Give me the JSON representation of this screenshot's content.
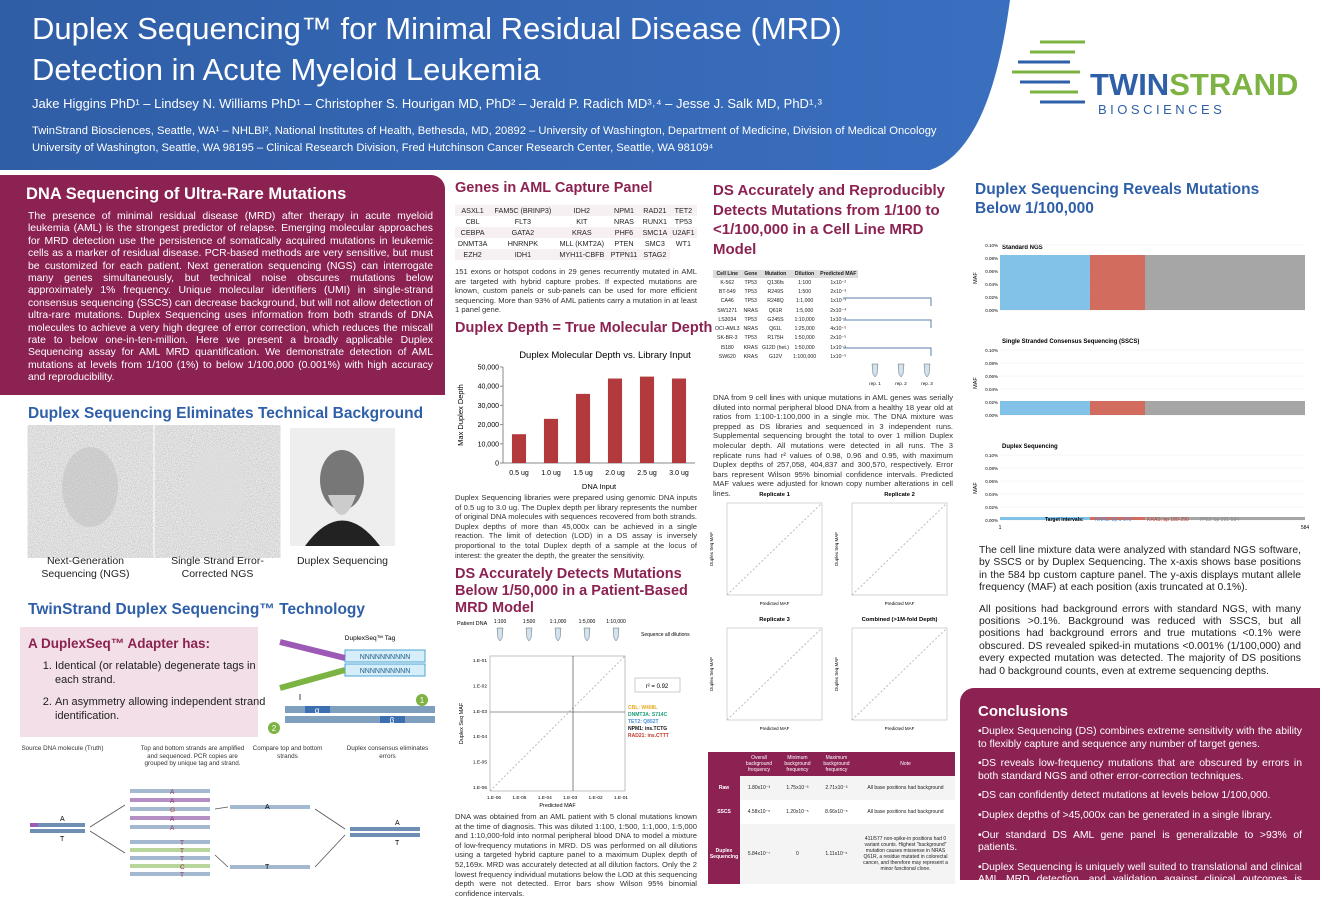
{
  "header": {
    "title_line1": "Duplex Sequencing™ for Minimal Residual Disease (MRD)",
    "title_line2": "Detection in Acute Myeloid Leukemia",
    "authors": "Jake Higgins PhD¹ – Lindsey N. Williams PhD¹ – Christopher S. Hourigan MD, PhD² – Jerald P. Radich MD³˒⁴ – Jesse J. Salk MD, PhD¹˒³",
    "affiliations_line1": "TwinStrand Biosciences, Seattle, WA¹ – NHLBI², National Institutes of Health, Bethesda, MD, 20892 – University of Washington, Department of Medicine, Division of Medical Oncology",
    "affiliations_line2": "University of Washington, Seattle, WA 98195 – Clinical Research Division, Fred Hutchinson Cancer Research Center, Seattle, WA 98109⁴"
  },
  "logo": {
    "name_part1": "TWIN",
    "name_part2": "STRAND",
    "subtitle": "BIOSCIENCES"
  },
  "section_rare": {
    "title": "DNA Sequencing of Ultra-Rare Mutations",
    "body": "The presence of minimal residual disease (MRD) after therapy in acute myeloid leukemia (AML) is the strongest predictor of relapse. Emerging molecular approaches for MRD detection use the persistence of somatically acquired mutations in leukemic cells as a marker of residual disease. PCR-based methods are very sensitive, but must be customized for each patient. Next generation sequencing (NGS) can interrogate many genes simultaneously, but technical noise obscures mutations below approximately 1% frequency. Unique molecular identifiers (UMI) in single-strand consensus sequencing (SSCS) can decrease background, but will not allow detection of ultra-rare mutations. Duplex Sequencing uses information from both strands of DNA molecules to achieve a very high degree of error correction, which reduces the miscall rate to below one-in-ten-million. Here we present a broadly applicable Duplex Sequencing assay for AML MRD quantification. We demonstrate detection of AML mutations at levels from 1/100 (1%) to below 1/100,000 (0.001%) with high accuracy and reproducibility."
  },
  "section_background": {
    "title": "Duplex Sequencing Eliminates Technical Background",
    "captions": [
      "Next-Generation Sequencing (NGS)",
      "Single Strand Error-Corrected NGS",
      "Duplex Sequencing"
    ]
  },
  "section_technology": {
    "title": "TwinStrand Duplex Sequencing™ Technology",
    "adapter_heading": "A DuplexSeq™ Adapter has:",
    "adapter_points": [
      "Identical (or relatable) degenerate tags in each strand.",
      "An asymmetry allowing independent strand identification."
    ],
    "adapter_diagram": {
      "tag_label": "DuplexSeq™ Tag",
      "tag_seq": "NNNNNNNNNN",
      "alpha": "α",
      "beta": "β",
      "strand_1": "1",
      "strand_2": "2"
    },
    "workflow_steps": [
      "Source DNA molecule (Truth)",
      "Top and bottom strands are amplified and sequenced. PCR copies are grouped by unique tag and strand.",
      "Compare top and bottom strands",
      "Duplex consensus eliminates errors"
    ],
    "bases": {
      "top": "A",
      "bottom": "T",
      "error_1": "G",
      "error_2": "C"
    }
  },
  "section_genes": {
    "title": "Genes in AML Capture Panel",
    "table": [
      [
        "ASXL1",
        "FAM5C (BRINP3)",
        "IDH2",
        "NPM1",
        "RAD21",
        "TET2"
      ],
      [
        "CBL",
        "FLT3",
        "KIT",
        "NRAS",
        "RUNX1",
        "TP53"
      ],
      [
        "CEBPA",
        "GATA2",
        "KRAS",
        "PHF6",
        "SMC1A",
        "U2AF1"
      ],
      [
        "DNMT3A",
        "HNRNPK",
        "MLL (KMT2A)",
        "PTEN",
        "SMC3",
        "WT1"
      ],
      [
        "EZH2",
        "IDH1",
        "MYH11-CBFB",
        "PTPN11",
        "STAG2"
      ]
    ],
    "note": "151 exons or hotspot codons in 29 genes recurrently mutated in AML are targeted with hybrid capture probes. If expected mutations are known, custom panels or sub-panels can be used for more efficient sequencing. More than 93% of AML patients carry a mutation in at least 1 panel gene."
  },
  "section_depth": {
    "title": "Duplex Depth = True Molecular Depth",
    "note": "Duplex Sequencing libraries were prepared using genomic DNA inputs of 0.5 ug to 3.0 ug. The Duplex depth per library represents the number of original DNA molecules with sequences recovered from both strands. Duplex depths of more than 45,000x can be achieved in a single reaction. The limit of detection (LOD) in a DS assay is inversely proportional to the total Duplex depth of a sample at the locus of interest: the greater the depth, the greater the sensitivity."
  },
  "chart_data": {
    "type": "bar",
    "title": "Duplex Molecular Depth vs. Library Input",
    "x_label": "DNA Input",
    "y_label": "Max Duplex Depth",
    "categories": [
      "0.5 ug",
      "1.0 ug",
      "1.5 ug",
      "2.0 ug",
      "2.5 ug",
      "3.0 ug"
    ],
    "values": [
      15000,
      23000,
      36000,
      44000,
      45000,
      44000
    ],
    "color": "#b23a3c",
    "ylim": [
      0,
      50000
    ],
    "yticks": [
      0,
      {
        "value": 10000,
        "label": "10,000"
      },
      {
        "value": 20000,
        "label": "20,000"
      },
      {
        "value": 30000,
        "label": "30,000"
      },
      {
        "value": 40000,
        "label": "40,000"
      },
      {
        "value": 50000,
        "label": "50,000"
      }
    ],
    "grid": false
  },
  "section_patient": {
    "title": "DS Accurately Detects Mutations Below 1/50,000 in a Patient-Based MRD Model",
    "figure": {
      "source": "Patient DNA",
      "dilutions": [
        "1:100",
        "1:500",
        "1:1,000",
        "1:5,000",
        "1:10,000"
      ],
      "sequence": "Sequence all dilutions",
      "axis_ticks": [
        "1.E-01",
        "1.E-02",
        "1.E-03",
        "1.E-04",
        "1.E-05",
        "1.E-06"
      ],
      "x_label": "Predicted MAF",
      "y_label": "Duplex Seq MAF",
      "r2": "r² = 0.92",
      "legend": [
        "CBL: W408L",
        "DNMT3A: S714C",
        "TET2: Q852T",
        "NPM1: ins.TCTG",
        "RAD21: ins.CTTT"
      ]
    },
    "note": "DNA was obtained from an AML patient with 5 clonal mutations known at the time of diagnosis. This was diluted 1:100, 1:500, 1:1,000, 1:5,000 and 1:10,000-fold into normal peripheral blood DNA to model a mixture of low-frequency mutations in MRD. DS was performed on all dilutions using a targeted hybrid capture panel to a maximum Duplex depth of 52,169x. MRD was accurately detected at all dilution factors. Only the 2 lowest frequency individual mutations below the LOD at this sequencing depth were not detected. Error bars show Wilson 95% binomial confidence intervals."
  },
  "section_cell_line": {
    "title": "DS Accurately and Reproducibly Detects Mutations from 1/100 to <1/100,000 in a Cell Line MRD Model",
    "table": {
      "header": [
        "Cell Line",
        "Gene",
        "Mutation",
        "Dilution",
        "Predicted MAF"
      ],
      "rows": [
        [
          "K-562",
          "TP53",
          "Q136fs",
          "1:100",
          "1x10⁻²"
        ],
        [
          "BT-549",
          "TP53",
          "R249S",
          "1:500",
          "2x10⁻³"
        ],
        [
          "CA46",
          "TP53",
          "R248Q",
          "1:1,000",
          "1x10⁻³"
        ],
        [
          "SW1271",
          "NRAS",
          "Q61R",
          "1:5,000",
          "2x10⁻⁴"
        ],
        [
          "LS3034",
          "TP53",
          "G245S",
          "1:10,000",
          "1x10⁻⁴"
        ],
        [
          "OCI-AML3",
          "NRAS",
          "Q61L",
          "1:25,000",
          "4x10⁻⁵"
        ],
        [
          "SK-BR-3",
          "TP53",
          "R175H",
          "1:50,000",
          "2x10⁻⁵"
        ],
        [
          "I5180",
          "KRAS",
          "G12D (het.)",
          "1:50,000",
          "1x10⁻⁵"
        ],
        [
          "SW620",
          "KRAS",
          "G12V",
          "1:100,000",
          "1x10⁻⁵"
        ]
      ]
    },
    "replicate_steps": [
      "rep. 1",
      "rep. 2",
      "rep. 3"
    ],
    "note": "DNA from 9 cell lines with unique mutations in AML genes was serially diluted into normal peripheral blood DNA from a healthy 18 year old at ratios from 1:100-1:100,000 in a single mix. The DNA mixture was prepped as DS libraries and sequenced in 3 independent runs. Supplemental sequencing brought the total to over 1 million Duplex molecular depth. All mutations were detected in all runs. The 3 replicate runs had r² values of 0.98, 0.96 and 0.95, with maximum Duplex depths of 257,058, 404,837 and 300,570, respectively. Error bars represent Wilson 95% binomial confidence intervals. Predicted MAF values were adjusted for known copy number alterations in cell lines.",
    "replicates": [
      "Replicate 1",
      "Replicate 2",
      "Replicate 3",
      "Combined (>1M-fold Depth)"
    ],
    "replicate_x_label": "Predicted MAF",
    "replicate_y_label": "Duplex Seq MAF",
    "background_table": {
      "header": [
        "Overall background frequency",
        "Minimum background frequency",
        "Maximum background frequency",
        "Note"
      ],
      "rows": [
        {
          "label": "Raw",
          "cells": [
            "1.80x10⁻³",
            "1.75x10⁻³",
            "2.71x10⁻³",
            "All base positions had background"
          ]
        },
        {
          "label": "SSCS",
          "cells": [
            "4.58x10⁻⁵",
            "1.20x10⁻⁵",
            "8.66x10⁻⁵",
            "All base positions had background"
          ]
        },
        {
          "label": "Duplex Sequencing",
          "cells": [
            "5.84x10⁻⁷",
            "0",
            "1.11x10⁻⁵",
            "411/577 non-spike-in positions had 0 variant counts. Highest \"background\" mutation causes missense in NRAS Q61R, a residue mutated in colorectal cancer, and therefore may represent a minor functional clone."
          ]
        }
      ]
    }
  },
  "section_reveals": {
    "title": "Duplex Sequencing Reveals Mutations Below 1/100,000",
    "panels": [
      "Standard NGS",
      "Single Stranded Consensus Sequencing (SSCS)",
      "Duplex Sequencing"
    ],
    "y_label": "MAF",
    "y_ticks": [
      "0.10%",
      "0.08%",
      "0.06%",
      "0.04%",
      "0.02%",
      "0.00%"
    ],
    "x_start": "1",
    "x_end": "584",
    "target_label": "Target intervals:",
    "targets": [
      "NRAS: bp 1-179",
      "KRAS: bp 180-290",
      "TP53: bp 291-584"
    ],
    "paragraphs": [
      "The cell line mixture data were analyzed with standard NGS software, by SSCS or by Duplex Sequencing. The x-axis shows base positions in the 584 bp custom capture panel. The y-axis displays mutant allele frequency (MAF) at each position (axis truncated at 0.1%).",
      "All positions had background errors with standard NGS, with many positions >0.1%. Background was reduced with SSCS, but all positions had background errors and true mutations <0.1% were obscured. DS revealed spiked-in mutations <0.001% (1/100,000) and every expected mutation was detected. The majority of DS positions had 0 background counts, even at extreme sequencing depths."
    ]
  },
  "conclusions": {
    "title": "Conclusions",
    "bullets": [
      "Duplex Sequencing (DS) combines extreme sensitivity with the ability to flexibly capture and sequence any number of target genes.",
      "DS reveals low-frequency mutations that are obscured by errors in both standard NGS and other error-correction techniques.",
      "DS can confidently detect mutations at levels below 1/100,000.",
      "Duplex depths of >45,000x can be generated in a single library.",
      "Our standard DS AML gene panel is generalizable to >93% of patients.",
      "Duplex Sequencing is uniquely well suited to translational and clinical AML MRD detection, and validation against clinical outcomes is ongoing."
    ]
  }
}
